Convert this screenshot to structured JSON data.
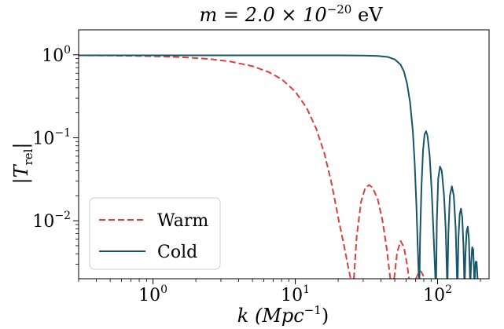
{
  "chart_data": {
    "type": "line",
    "title": "m = 2.0 × 10⁻²⁰ eV",
    "title_parts": {
      "lead": "m = 2.0 × 10",
      "exp": "−20",
      "tail": " eV"
    },
    "xlabel": "k (Mpc⁻¹)",
    "xlabel_parts": {
      "lead": "k (Mpc",
      "exp": "−1",
      "tail": ")"
    },
    "ylabel": "|T_rel|",
    "ylabel_parts": {
      "lead": "|T",
      "sub": "rel",
      "tail": "|"
    },
    "x_scale": "log",
    "y_scale": "log",
    "xlim": [
      0.3,
      230
    ],
    "ylim": [
      0.002,
      2.0
    ],
    "x_ticks": [
      {
        "value": 1,
        "base": "10",
        "exp": "0"
      },
      {
        "value": 10,
        "base": "10",
        "exp": "1"
      },
      {
        "value": 100,
        "base": "10",
        "exp": "2"
      }
    ],
    "y_ticks": [
      {
        "value": 0.01,
        "base": "10",
        "exp": "−2"
      },
      {
        "value": 0.1,
        "base": "10",
        "exp": "−1"
      },
      {
        "value": 1,
        "base": "10",
        "exp": "0"
      }
    ],
    "grid": false,
    "legend_position": "lower-left",
    "series": [
      {
        "name": "Warm",
        "color": "#d9413a",
        "style": "dashed",
        "points": [
          [
            0.3,
            0.985
          ],
          [
            0.5,
            0.98
          ],
          [
            0.8,
            0.97
          ],
          [
            1.2,
            0.955
          ],
          [
            1.8,
            0.925
          ],
          [
            2.5,
            0.89
          ],
          [
            3.5,
            0.83
          ],
          [
            5,
            0.73
          ],
          [
            6.5,
            0.62
          ],
          [
            8,
            0.51
          ],
          [
            10,
            0.36
          ],
          [
            12,
            0.23
          ],
          [
            14,
            0.13
          ],
          [
            16,
            0.065
          ],
          [
            18,
            0.028
          ],
          [
            20,
            0.011
          ],
          [
            22,
            0.005
          ],
          [
            23.5,
            0.0028
          ],
          [
            24.5,
            0.002
          ],
          null,
          [
            25.8,
            0.002
          ],
          [
            27,
            0.0065
          ],
          [
            29,
            0.017
          ],
          [
            31,
            0.025
          ],
          [
            33,
            0.027
          ],
          [
            35,
            0.025
          ],
          [
            38,
            0.018
          ],
          [
            41,
            0.01
          ],
          [
            44,
            0.0045
          ],
          [
            46.5,
            0.002
          ],
          null,
          [
            49.5,
            0.002
          ],
          [
            52,
            0.0042
          ],
          [
            55,
            0.0057
          ],
          [
            58,
            0.0048
          ],
          [
            61,
            0.003
          ],
          [
            63,
            0.002
          ],
          null,
          [
            70.5,
            0.002
          ],
          [
            73,
            0.0023
          ],
          [
            76,
            0.0025
          ],
          [
            79,
            0.0022
          ],
          [
            81,
            0.002
          ]
        ]
      },
      {
        "name": "Cold",
        "color": "#18546a",
        "style": "solid",
        "points": [
          [
            0.3,
            0.985
          ],
          [
            1,
            0.985
          ],
          [
            5,
            0.985
          ],
          [
            10,
            0.985
          ],
          [
            20,
            0.984
          ],
          [
            30,
            0.98
          ],
          [
            38,
            0.97
          ],
          [
            45,
            0.94
          ],
          [
            50,
            0.88
          ],
          [
            55,
            0.76
          ],
          [
            58,
            0.63
          ],
          [
            61,
            0.45
          ],
          [
            64,
            0.27
          ],
          [
            67,
            0.12
          ],
          [
            69,
            0.05
          ],
          [
            71,
            0.015
          ],
          [
            72.5,
            0.005
          ],
          [
            73.5,
            0.0025
          ],
          [
            74.3,
            0.002
          ],
          null,
          [
            74.6,
            0.002
          ],
          [
            75.3,
            0.006
          ],
          [
            77,
            0.025
          ],
          [
            79,
            0.07
          ],
          [
            81,
            0.11
          ],
          [
            83,
            0.12
          ],
          [
            85,
            0.105
          ],
          [
            88,
            0.06
          ],
          [
            91,
            0.022
          ],
          [
            94,
            0.006
          ],
          [
            96.5,
            0.002
          ],
          null,
          [
            97.7,
            0.002
          ],
          [
            98.8,
            0.01
          ],
          [
            101,
            0.032
          ],
          [
            104,
            0.045
          ],
          [
            107,
            0.04
          ],
          [
            111,
            0.02
          ],
          [
            114,
            0.008
          ],
          [
            116.5,
            0.002
          ],
          null,
          [
            117.5,
            0.002
          ],
          [
            119,
            0.007
          ],
          [
            122,
            0.02
          ],
          [
            126,
            0.026
          ],
          [
            130,
            0.02
          ],
          [
            134,
            0.008
          ],
          [
            137,
            0.002
          ],
          null,
          [
            138.5,
            0.002
          ],
          [
            140,
            0.006
          ],
          [
            143,
            0.012
          ],
          [
            146,
            0.014
          ],
          [
            149,
            0.011
          ],
          [
            152,
            0.005
          ],
          [
            154,
            0.002
          ],
          null,
          [
            155.5,
            0.002
          ],
          [
            157,
            0.004
          ],
          [
            160,
            0.0075
          ],
          [
            163,
            0.0085
          ],
          [
            166,
            0.006
          ],
          [
            169,
            0.002
          ],
          null,
          [
            170.5,
            0.002
          ],
          [
            172,
            0.003
          ],
          [
            175,
            0.0048
          ],
          [
            178,
            0.0045
          ],
          [
            181,
            0.002
          ],
          null,
          [
            182.5,
            0.002
          ],
          [
            185,
            0.0032
          ],
          [
            188,
            0.0032
          ],
          [
            191,
            0.002
          ]
        ]
      }
    ]
  }
}
